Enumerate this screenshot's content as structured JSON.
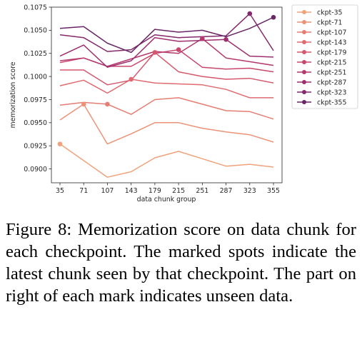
{
  "chart_data": {
    "type": "line",
    "title": "",
    "xlabel": "data chunk group",
    "ylabel": "memorization score",
    "categories": [
      "35",
      "71",
      "107",
      "143",
      "179",
      "215",
      "251",
      "287",
      "323",
      "355"
    ],
    "yticks": [
      "0.0900",
      "0.0925",
      "0.0950",
      "0.0975",
      "0.1000",
      "0.1025",
      "0.1050",
      "0.1075"
    ],
    "ylim": [
      0.0885,
      0.1075
    ],
    "grid": false,
    "legend_position": "outside-right",
    "series": [
      {
        "name": "ckpt-35",
        "color": "#f0a27b",
        "marker_index": 0,
        "values": [
          0.0927,
          0.0909,
          0.0891,
          0.0897,
          0.0912,
          0.0919,
          0.0911,
          0.0903,
          0.0905,
          0.0902
        ]
      },
      {
        "name": "ckpt-71",
        "color": "#ec9277",
        "marker_index": 1,
        "values": [
          0.0953,
          0.097,
          0.0927,
          0.0938,
          0.095,
          0.095,
          0.0944,
          0.094,
          0.0937,
          0.0929
        ]
      },
      {
        "name": "ckpt-107",
        "color": "#e67d72",
        "marker_index": 2,
        "values": [
          0.0969,
          0.0972,
          0.097,
          0.0959,
          0.0975,
          0.0977,
          0.097,
          0.0963,
          0.0962,
          0.0954
        ]
      },
      {
        "name": "ckpt-143",
        "color": "#df6a70",
        "marker_index": 3,
        "values": [
          0.099,
          0.0996,
          0.0982,
          0.0997,
          0.0993,
          0.0992,
          0.0991,
          0.0986,
          0.0977,
          0.0977
        ]
      },
      {
        "name": "ckpt-179",
        "color": "#d5576d",
        "marker_index": 4,
        "values": [
          0.1007,
          0.1007,
          0.0991,
          0.0996,
          0.1026,
          0.1005,
          0.1,
          0.0997,
          0.0998,
          0.0993
        ]
      },
      {
        "name": "ckpt-215",
        "color": "#c7466c",
        "marker_index": 5,
        "values": [
          0.1015,
          0.102,
          0.1011,
          0.1011,
          0.1025,
          0.1029,
          0.101,
          0.1008,
          0.1009,
          0.1005
        ]
      },
      {
        "name": "ckpt-251",
        "color": "#b4396e",
        "marker_index": 6,
        "values": [
          0.1017,
          0.102,
          0.1011,
          0.1019,
          0.1027,
          0.1025,
          0.1041,
          0.102,
          0.1016,
          0.1012
        ]
      },
      {
        "name": "ckpt-287",
        "color": "#9e2f6f",
        "marker_index": 7,
        "values": [
          0.1022,
          0.1034,
          0.101,
          0.1017,
          0.1042,
          0.1038,
          0.1039,
          0.104,
          0.1022,
          0.1021
        ]
      },
      {
        "name": "ckpt-323",
        "color": "#84296c",
        "marker_index": 8,
        "values": [
          0.1045,
          0.1042,
          0.1027,
          0.1029,
          0.1045,
          0.1042,
          0.1043,
          0.1044,
          0.1068,
          0.1028
        ]
      },
      {
        "name": "ckpt-355",
        "color": "#6a2566",
        "marker_index": 9,
        "values": [
          0.1052,
          0.1054,
          0.1036,
          0.1026,
          0.1051,
          0.1048,
          0.105,
          0.1043,
          0.1052,
          0.1064
        ]
      }
    ]
  },
  "caption": {
    "text": "Figure 8: Memorization score on data chunk for each checkpoint. The marked spots indicate the latest chunk seen by that checkpoint. The part on right of each mark indicates unseen data."
  }
}
